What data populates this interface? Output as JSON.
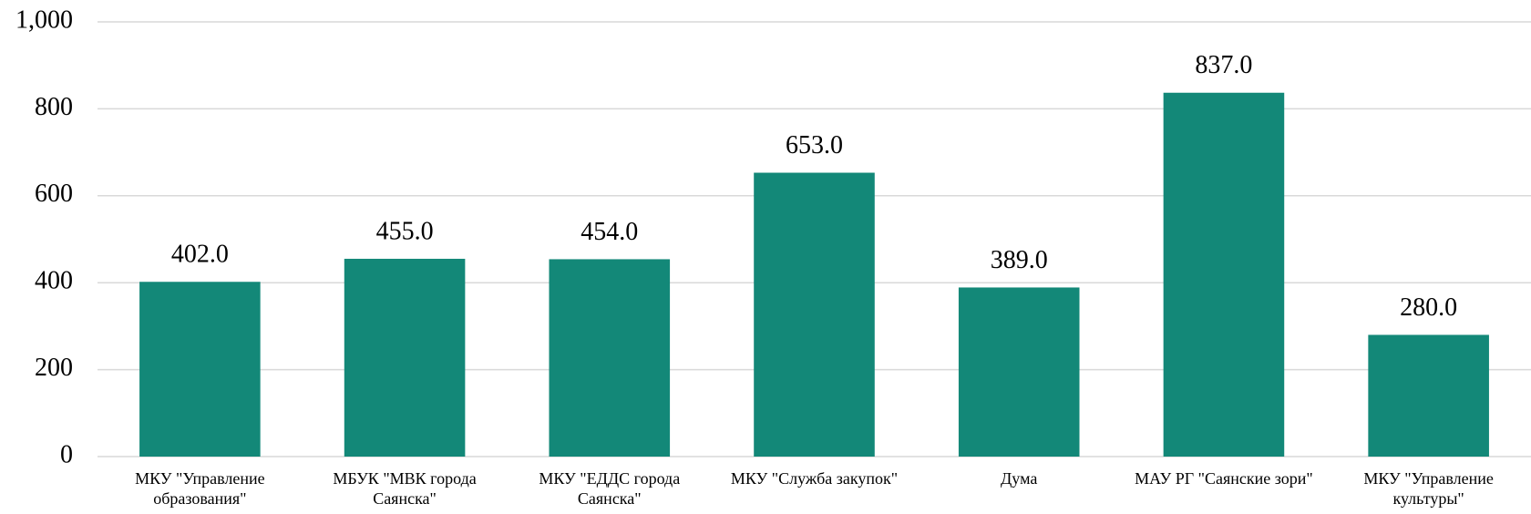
{
  "chart_data": {
    "type": "bar",
    "categories": [
      "МКУ \"Управление образования\"",
      "МБУК \"МВК города Саянска\"",
      "МКУ \"ЕДДС города Саянска\"",
      "МКУ \"Служба закупок\"",
      "Дума",
      "МАУ РГ \"Саянские зори\"",
      "МКУ \"Управление культуры\""
    ],
    "values": [
      402,
      455,
      454,
      653,
      389,
      837,
      280
    ],
    "value_labels": [
      "402.0",
      "455.0",
      "454.0",
      "653.0",
      "389.0",
      "837.0",
      "280.0"
    ],
    "color": "#138878",
    "ylim": [
      0,
      1000
    ],
    "yticks": [
      0,
      200,
      400,
      600,
      800,
      {
        "value": 1000,
        "label": "1,000"
      }
    ],
    "grid": true
  }
}
